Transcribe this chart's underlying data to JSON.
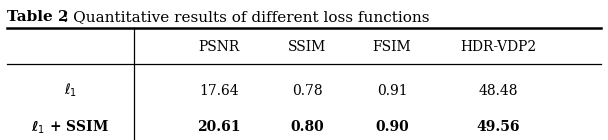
{
  "title_bold": "Table 2",
  "title_normal": ": Quantitative results of different loss functions",
  "col_headers": [
    "PSNR",
    "SSIM",
    "FSIM",
    "HDR-VDP2"
  ],
  "row_labels": [
    "$\\ell_1$",
    "$\\boldsymbol{\\ell}_1$ + SSIM"
  ],
  "row_labels_bold": [
    false,
    true
  ],
  "values": [
    [
      "17.64",
      "0.78",
      "0.91",
      "48.48"
    ],
    [
      "20.61",
      "0.80",
      "0.90",
      "49.56"
    ]
  ],
  "values_bold": [
    false,
    true
  ],
  "bg_color": "#ffffff",
  "figsize": [
    6.08,
    1.4
  ],
  "dpi": 100
}
